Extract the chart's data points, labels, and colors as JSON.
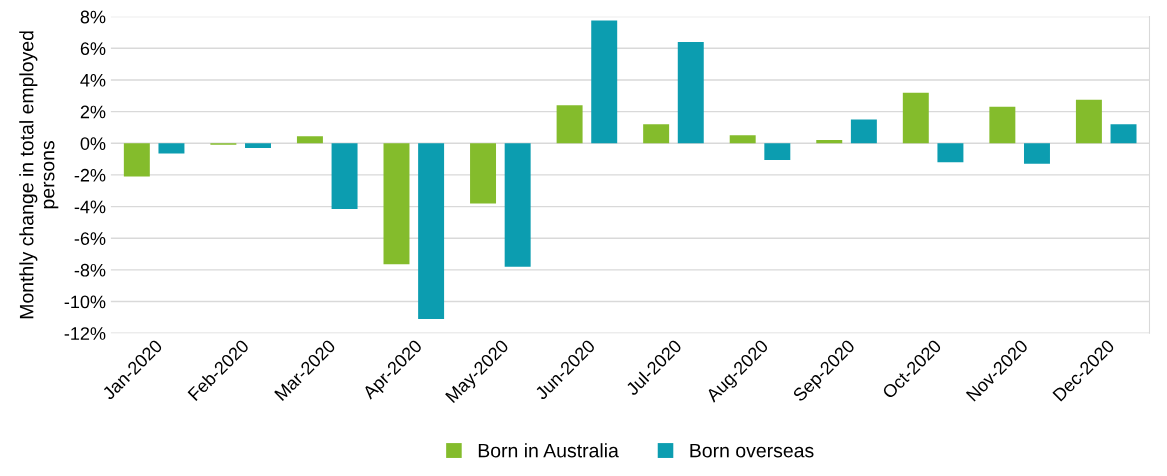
{
  "chart_data": {
    "type": "bar",
    "ylabel": "Monthly change in total employed persons",
    "categories": [
      "Jan-2020",
      "Feb-2020",
      "Mar-2020",
      "Apr-2020",
      "May-2020",
      "Jun-2020",
      "Jul-2020",
      "Aug-2020",
      "Sep-2020",
      "Oct-2020",
      "Nov-2020",
      "Dec-2020"
    ],
    "series": [
      {
        "name": "Born in Australia",
        "color": "#84bc2c",
        "values": [
          -2.1,
          -0.1,
          0.45,
          -7.65,
          -3.8,
          2.4,
          1.2,
          0.5,
          0.2,
          3.2,
          2.3,
          2.75
        ]
      },
      {
        "name": "Born overseas",
        "color": "#0c9db0",
        "values": [
          -0.65,
          -0.3,
          -4.15,
          -11.1,
          -7.8,
          7.75,
          6.4,
          -1.05,
          1.5,
          -1.2,
          -1.3,
          1.2
        ]
      }
    ],
    "ylim": [
      -12,
      8
    ],
    "yticks": [
      {
        "value": -12,
        "label": "-12%"
      },
      {
        "value": -10,
        "label": "-10%"
      },
      {
        "value": -8,
        "label": "-8%"
      },
      {
        "value": -6,
        "label": "-6%"
      },
      {
        "value": -4,
        "label": "-4%"
      },
      {
        "value": -2,
        "label": "-2%"
      },
      {
        "value": 0,
        "label": "0%"
      },
      {
        "value": 2,
        "label": "2%"
      },
      {
        "value": 4,
        "label": "4%"
      },
      {
        "value": 6,
        "label": "6%"
      },
      {
        "value": 8,
        "label": "8%"
      }
    ],
    "grid": "y",
    "legend": "bottom"
  }
}
